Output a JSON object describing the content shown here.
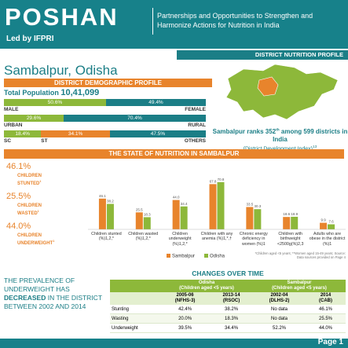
{
  "header": {
    "logo": "POSHAN",
    "led_by": "Led by IFPRI",
    "tagline": "Partnerships and Opportunities to Strengthen and Harmonize Actions for Nutrition in India",
    "profile_banner": "DISTRICT NUTRITION PROFILE"
  },
  "district": "Sambalpur, Odisha",
  "demographics": {
    "title": "DISTRICT DEMOGRAPHIC PROFILE",
    "population_label": "Total Population",
    "population": "10,41,099",
    "bars": [
      {
        "segments": [
          {
            "name": "MALE",
            "value": 50.6,
            "value_label": "50.6%",
            "color": "#8db83a"
          },
          {
            "name": "FEMALE",
            "value": 49.4,
            "value_label": "49.4%",
            "color": "#1b7e86"
          }
        ]
      },
      {
        "segments": [
          {
            "name": "URBAN",
            "value": 29.6,
            "value_label": "29.6%",
            "color": "#8db83a"
          },
          {
            "name": "RURAL",
            "value": 70.4,
            "value_label": "70.4%",
            "color": "#1b7e86"
          }
        ]
      },
      {
        "segments": [
          {
            "name": "SC",
            "value": 18.4,
            "value_label": "18.4%",
            "color": "#8db83a"
          },
          {
            "name": "ST",
            "value": 34.1,
            "value_label": "34.1%",
            "color": "#e8842c"
          },
          {
            "name": "OTHERS",
            "value": 47.5,
            "value_label": "47.5%",
            "color": "#1b7e86"
          }
        ]
      }
    ]
  },
  "rank": {
    "lead": "Sambalpur ranks 352",
    "suffix": "th",
    "rest": "among 599 districts in India",
    "index": "(District Development Index)",
    "note": "13"
  },
  "nutrition": {
    "title": "THE STATE OF NUTRITION IN SAMBALPUR",
    "stats": [
      {
        "value": "46.1%",
        "line1": "CHILDREN",
        "line2": "STUNTED",
        "note": "1"
      },
      {
        "value": "25.5%",
        "line1": "CHILDREN",
        "line2": "WASTED",
        "note": "1"
      },
      {
        "value": "44.0%",
        "line1": "CHILDREN",
        "line2": "UNDERWEIGHT",
        "note": "1"
      }
    ],
    "footnote": "*Children aged <5 years; **Women aged 15-49 years; Source: Data sources provided on Page 4"
  },
  "chart_data": {
    "type": "bar",
    "categories": [
      "Children stunted (%)1,2,*",
      "Children wasted (%)1,2,*",
      "Children underweight (%)1,2,*",
      "Children with any anemia (%)1,*,†",
      "Chronic energy deficiency in women (%)1",
      "Children with birthweight <2500g(%)2,3",
      "Adults who are obese in the district (%)1"
    ],
    "series": [
      {
        "name": "Sambalpur",
        "color": "#e8842c",
        "values": [
          46.1,
          25.5,
          44.0,
          67.8,
          33.5,
          18.6,
          9.9
        ],
        "value_labels": [
          "46.1",
          "25.5",
          "44.0",
          "67.8",
          "33.5",
          "18.6",
          "9.9"
        ]
      },
      {
        "name": "Odisha",
        "color": "#8db83a",
        "values": [
          38.2,
          18.3,
          34.4,
          70.8,
          30.3,
          18.9,
          7.6
        ],
        "value_labels": [
          "38.2",
          "18.3",
          "34.4",
          "70.8",
          "30.3",
          "18.9",
          "7.6"
        ]
      }
    ],
    "ylim": [
      0,
      80
    ],
    "legend": "bottom"
  },
  "message": {
    "pre": "THE PREVALENCE OF UNDERWEIGHT HAS",
    "bold": "DECREASED",
    "post": "IN THE DISTRICT BETWEEN 2002 AND 2014"
  },
  "changes": {
    "title": "CHANGES OVER TIME",
    "groups": [
      {
        "name": "Odisha",
        "note": "(Children aged <5 years)"
      },
      {
        "name": "Sambalpur",
        "note": "(Children aged <5 years)"
      }
    ],
    "years": [
      {
        "year": "2005-06",
        "source": "(NFHS-3)"
      },
      {
        "year": "2013-14",
        "source": "(RSOC)"
      },
      {
        "year": "2002-04",
        "source": "(DLHS-2)"
      },
      {
        "year": "2014",
        "source": "(CAB)"
      }
    ],
    "rows": [
      {
        "label": "Stunting",
        "cells": [
          "42.4%",
          "38.2%",
          "No data",
          "46.1%"
        ]
      },
      {
        "label": "Wasting",
        "cells": [
          "20.0%",
          "18.3%",
          "No data",
          "25.5%"
        ]
      },
      {
        "label": "Underweight",
        "cells": [
          "39.5%",
          "34.4%",
          "52.2%",
          "44.0%"
        ]
      }
    ]
  },
  "footer": {
    "page": "Page 1"
  }
}
